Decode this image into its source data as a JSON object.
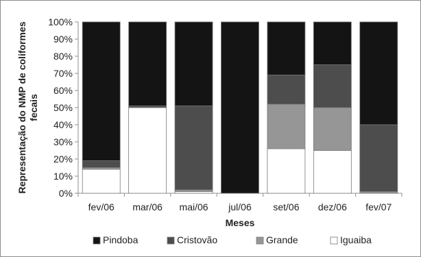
{
  "chart_data": {
    "type": "bar",
    "stacked": true,
    "percent": true,
    "categories": [
      "fev/06",
      "mar/06",
      "mai/06",
      "jul/06",
      "set/06",
      "dez/06",
      "fev/07"
    ],
    "series": [
      {
        "name": "Iguaiba",
        "color": "#ffffff",
        "values": [
          14,
          50,
          1,
          0,
          26,
          25,
          0
        ]
      },
      {
        "name": "Grande",
        "color": "#969696",
        "values": [
          1,
          0,
          1,
          0,
          26,
          25,
          1
        ]
      },
      {
        "name": "Cristovão",
        "color": "#4d4d4d",
        "values": [
          4,
          1,
          49,
          0,
          17,
          25,
          39
        ]
      },
      {
        "name": "Pindoba",
        "color": "#141414",
        "values": [
          81,
          49,
          49,
          100,
          31,
          25,
          60
        ]
      }
    ],
    "legend_order": [
      "Pindoba",
      "Cristovão",
      "Grande",
      "Iguaiba"
    ],
    "legend_position": "bottom",
    "ylim": [
      0,
      100
    ],
    "yticks": [
      "0%",
      "10%",
      "20%",
      "30%",
      "40%",
      "50%",
      "60%",
      "70%",
      "80%",
      "90%",
      "100%"
    ],
    "xlabel": "Meses",
    "ylabel_lines": [
      "Representação do NMP de coliformes",
      "fecais"
    ],
    "grid": false
  }
}
